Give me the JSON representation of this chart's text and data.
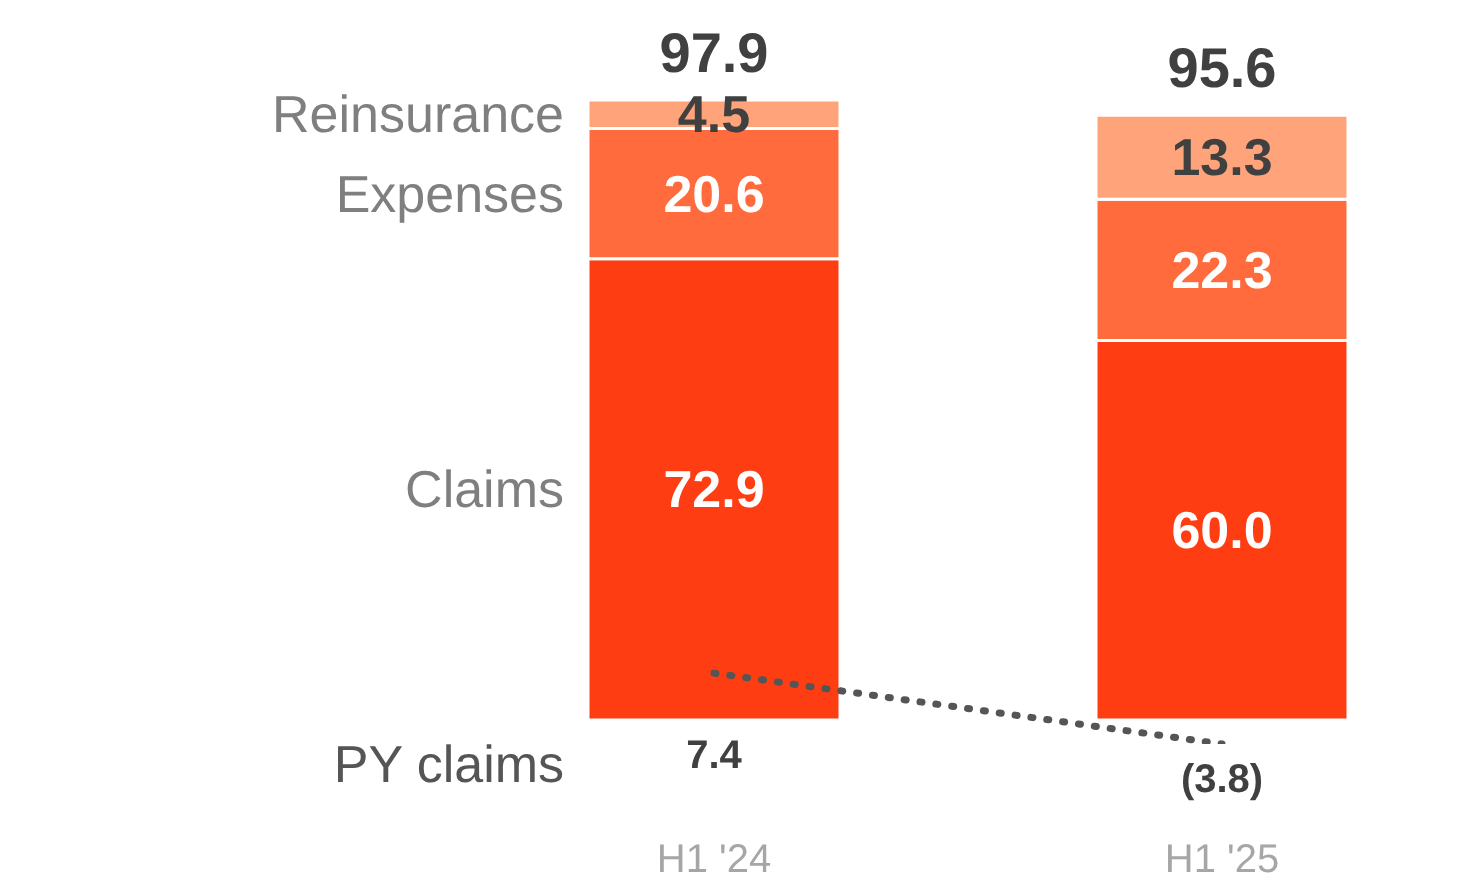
{
  "chart_data": {
    "type": "bar",
    "stacked": true,
    "categories": [
      "H1 '24",
      "H1 '25"
    ],
    "series": [
      {
        "name": "Claims",
        "color": "#ff3d12",
        "values": [
          72.9,
          60.0
        ],
        "value_labels": [
          "72.9",
          "60.0"
        ]
      },
      {
        "name": "Expenses",
        "color": "#ff6b3d",
        "values": [
          20.6,
          22.3
        ],
        "value_labels": [
          "20.6",
          "22.3"
        ]
      },
      {
        "name": "Reinsurance",
        "color": "#ffa47a",
        "values": [
          4.5,
          13.3
        ],
        "value_labels": [
          "4.5",
          "13.3"
        ]
      },
      {
        "name": "PY claims",
        "type": "line",
        "color": "#555555",
        "values": [
          7.4,
          -3.8
        ],
        "value_labels": [
          "7.4",
          "(3.8)"
        ],
        "line_style": "dotted",
        "marker": "none"
      }
    ],
    "totals": [
      "97.9",
      "95.6"
    ]
  }
}
